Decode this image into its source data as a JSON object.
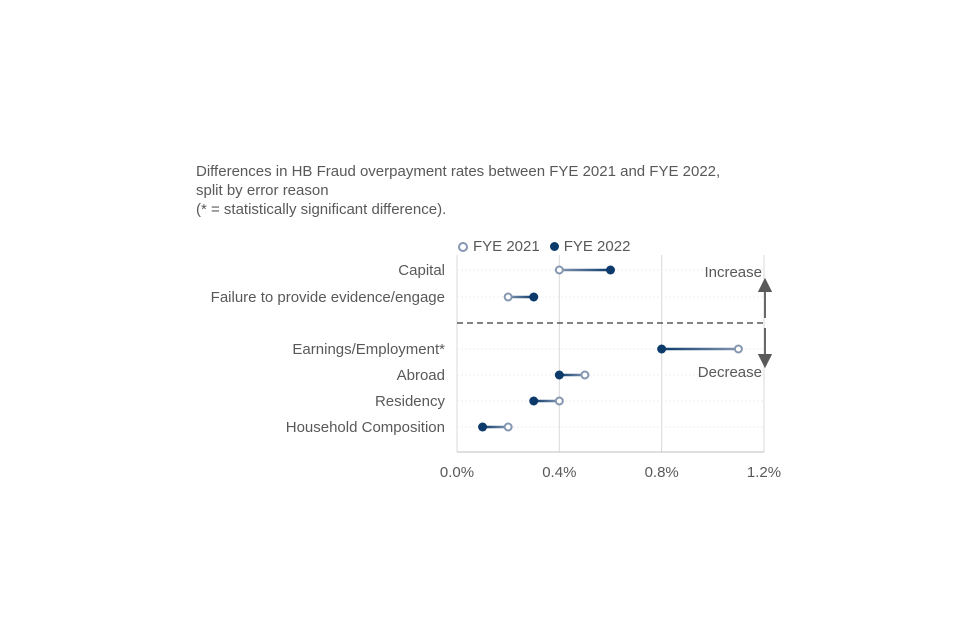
{
  "title": {
    "line1": "Differences in HB Fraud overpayment rates between FYE 2021 and FYE 2022,",
    "line2": "split by error reason",
    "line3": "(* = statistically significant difference)."
  },
  "annotations": {
    "increase": "Increase",
    "decrease": "Decrease"
  },
  "colors": {
    "fye2021": "#8496b0",
    "fye2022": "#0b3a6b",
    "grid": "#d9d9d9",
    "text": "#595959",
    "divider": "#595959"
  },
  "chart_data": {
    "type": "dumbbell",
    "categories": [
      "Capital",
      "Failure to provide evidence/engage",
      "Earnings/Employment*",
      "Abroad",
      "Residency",
      "Household Composition"
    ],
    "series": [
      {
        "name": "FYE 2021",
        "values": [
          0.4,
          0.2,
          1.1,
          0.5,
          0.4,
          0.2
        ]
      },
      {
        "name": "FYE 2022",
        "values": [
          0.6,
          0.3,
          0.8,
          0.4,
          0.3,
          0.1
        ]
      }
    ],
    "x_ticks": [
      "0.0%",
      "0.4%",
      "0.8%",
      "1.2%"
    ],
    "x_tick_values": [
      0,
      0.4,
      0.8,
      1.2
    ],
    "xlim": [
      0,
      1.2
    ],
    "units": "%",
    "legend_position": "top",
    "grid": "vertical"
  }
}
